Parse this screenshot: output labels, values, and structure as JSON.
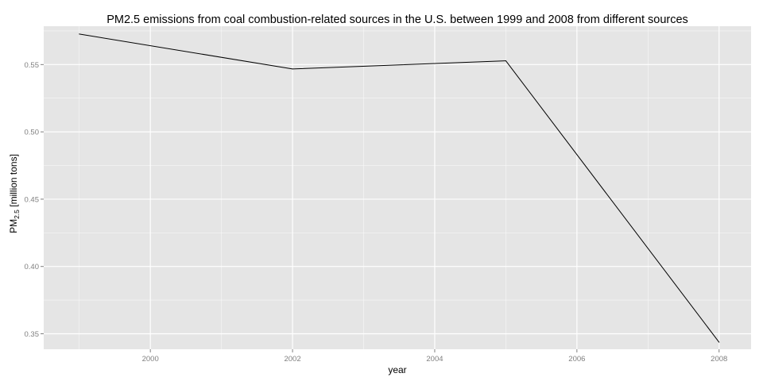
{
  "chart_data": {
    "type": "line",
    "title": "PM2.5 emissions from coal combustion-related sources in the U.S. between 1999 and 2008 from different sources",
    "xlabel": "year",
    "ylabel": {
      "main": "PM",
      "subscript": "2.5",
      "unit": " [million tons]"
    },
    "x": [
      1999,
      2002,
      2005,
      2008
    ],
    "series": [
      {
        "values": [
          0.5727,
          0.5467,
          0.5528,
          0.3437
        ]
      }
    ],
    "xlim": [
      1998.5,
      2008.45
    ],
    "ylim": [
      0.3385,
      0.5785
    ],
    "x_ticks": [
      2000,
      2002,
      2004,
      2006,
      2008
    ],
    "x_tick_labels": [
      "2000",
      "2002",
      "2004",
      "2006",
      "2008"
    ],
    "y_ticks": [
      0.35,
      0.4,
      0.45,
      0.5,
      0.55
    ],
    "y_tick_labels": [
      "0.35",
      "0.40",
      "0.45",
      "0.50",
      "0.55"
    ],
    "grid": true,
    "line_color": "#000000",
    "panel_background": "#e5e5e5",
    "grid_color": "#ffffff"
  }
}
